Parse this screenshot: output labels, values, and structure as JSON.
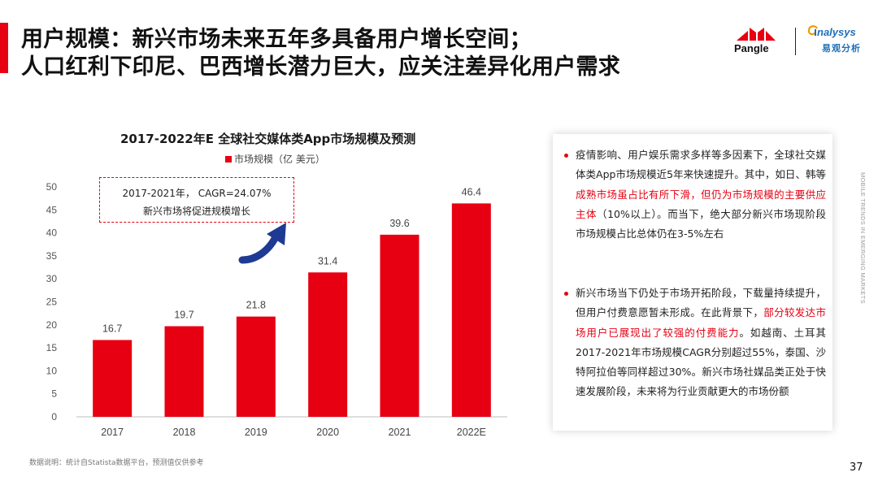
{
  "header": {
    "title_line1": "用户规模：新兴市场未来五年多具备用户增长空间；",
    "title_line2": "人口红利下印尼、巴西增长潜力巨大，应关注差异化用户需求",
    "logo_pangle_text": "Pangle",
    "logo_analysys_text": "nalysys",
    "logo_analysys_sub": "易观分析"
  },
  "chart_data": {
    "type": "bar",
    "title": "2017-2022年E 全球社交媒体类App市场规模及预测",
    "categories": [
      "2017",
      "2018",
      "2019",
      "2020",
      "2021",
      "2022E"
    ],
    "series": [
      {
        "name": "市场规模（亿 美元）",
        "values": [
          16.7,
          19.7,
          21.8,
          31.4,
          39.6,
          46.4
        ]
      }
    ],
    "ylim": [
      0,
      50
    ],
    "yticks": [
      "0",
      "5",
      "10",
      "15",
      "20",
      "25",
      "30",
      "35",
      "40",
      "45",
      "50"
    ],
    "legend_position": "top-center",
    "grid": false,
    "bar_color": "#E60012",
    "annotation": {
      "line1": "2017-2021年， CAGR=24.07%",
      "line2": "新兴市场将促进规模增长"
    }
  },
  "right_panel": {
    "bullet1": [
      {
        "t": "疫情影响、用户娱乐需求多样等多因素下，全球社交媒体类App市场规模近5年来快速提升。其中，如日、韩等",
        "hl": false
      },
      {
        "t": "成熟市场虽占比有所下滑，但仍为市场规模的主要供应主体",
        "hl": true
      },
      {
        "t": "（10%以上）。而当下，绝大部分新兴市场现阶段市场规模占比总体仍在3-5%左右",
        "hl": false
      }
    ],
    "bullet2": [
      {
        "t": "新兴市场当下仍处于市场开拓阶段，下载量持续提升，但用户付费意愿暂未形成。在此背景下，",
        "hl": false
      },
      {
        "t": "部分较发达市场用户已展现出了较强的付费能力",
        "hl": true
      },
      {
        "t": "。如越南、土耳其2017-2021年市场规模CAGR分别超过55%，泰国、沙特阿拉伯等同样超过30%。新兴市场社媒品类正处于快速发展阶段，未来将为行业贡献更大的市场份额",
        "hl": false
      }
    ]
  },
  "side_text": "MOBILE TRENDS IN EMERGING MARKETS",
  "footer": {
    "note": "数据说明：统计自Statista数据平台，预测值仅供参考",
    "page_number": "37"
  },
  "colors": {
    "accent": "#E60012",
    "highlight_text": "#E60012",
    "arrow": "#1F3A93"
  }
}
